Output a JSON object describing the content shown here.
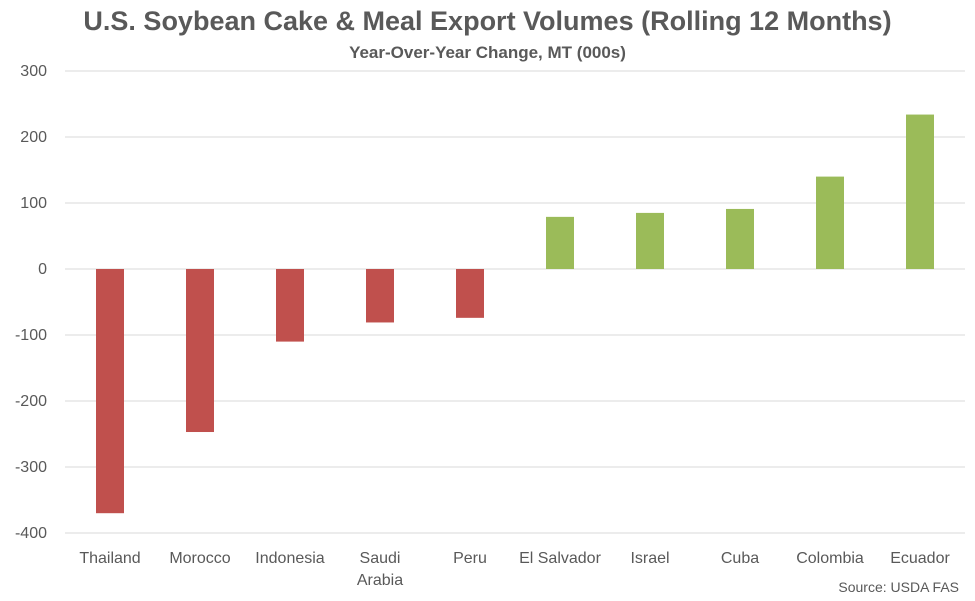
{
  "chart_data": {
    "type": "bar",
    "title": "U.S. Soybean Cake & Meal Export Volumes (Rolling 12 Months)",
    "subtitle": "Year-Over-Year Change, MT (000s)",
    "categories": [
      "Thailand",
      "Morocco",
      "Indonesia",
      "Saudi Arabia",
      "Peru",
      "El Salvador",
      "Israel",
      "Cuba",
      "Colombia",
      "Ecuador"
    ],
    "category_lines": [
      [
        "Thailand"
      ],
      [
        "Morocco"
      ],
      [
        "Indonesia"
      ],
      [
        "Saudi",
        "Arabia"
      ],
      [
        "Peru"
      ],
      [
        "El Salvador"
      ],
      [
        "Israel"
      ],
      [
        "Cuba"
      ],
      [
        "Colombia"
      ],
      [
        "Ecuador"
      ]
    ],
    "values": [
      -370,
      -247,
      -110,
      -81,
      -74,
      79,
      85,
      91,
      140,
      234
    ],
    "ylim": [
      -400,
      300
    ],
    "yticks": [
      300,
      200,
      100,
      0,
      -100,
      -200,
      -300,
      -400
    ],
    "ytick_labels": [
      "300",
      "200",
      "100",
      "0",
      "-100",
      "-200",
      "-300",
      "-400"
    ],
    "grid": true,
    "colors": {
      "negative": "#c0504d",
      "positive": "#9bbb59",
      "grid": "#d9d9d9",
      "text": "#595959"
    },
    "source": "Source: USDA FAS"
  }
}
